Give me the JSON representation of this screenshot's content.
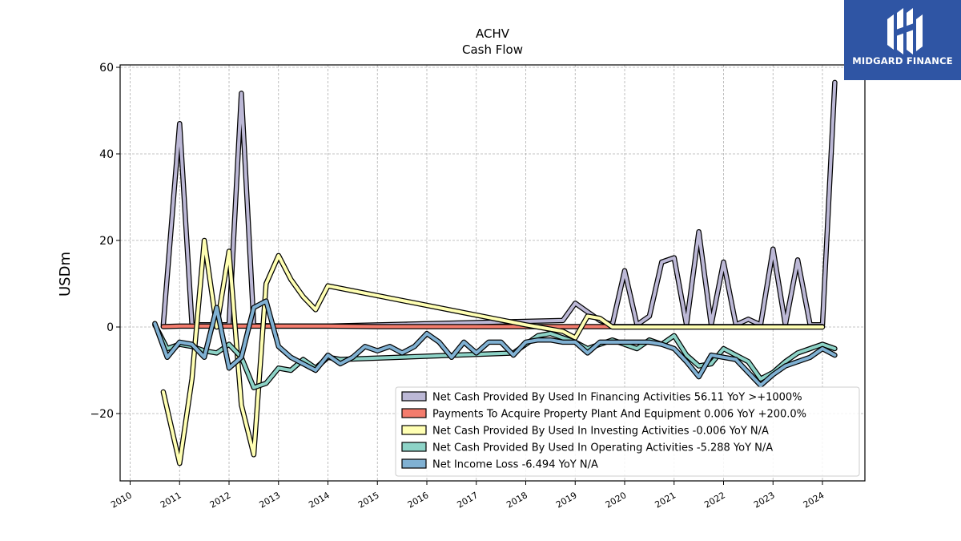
{
  "brand": {
    "name": "MIDGARD FINANCE",
    "logo_color": "#2f55a4"
  },
  "chart_data": {
    "type": "line",
    "title": "ACHV",
    "subtitle": "Cash Flow",
    "ylabel": "USDm",
    "xlabel": "",
    "ylim": [
      -35,
      60.5
    ],
    "xlim": [
      2009.8,
      2024.9
    ],
    "yticks": [
      -20,
      0,
      20,
      40,
      60
    ],
    "xticks": [
      2010,
      2011,
      2012,
      2013,
      2014,
      2015,
      2016,
      2017,
      2018,
      2019,
      2020,
      2021,
      2022,
      2023,
      2024
    ],
    "grid": true,
    "legend_position": "lower-right",
    "series": [
      {
        "name": "Net Cash Provided By Used In Financing Activities  56.11 YoY >+1000%",
        "color": "#bcb8d6",
        "x": [
          2010.67,
          2011.0,
          2011.25,
          2011.5,
          2011.75,
          2012.0,
          2012.25,
          2012.5,
          2012.75,
          2013.0,
          2013.75,
          2014.0,
          2018.75,
          2019.0,
          2019.25,
          2019.5,
          2019.75,
          2020.0,
          2020.25,
          2020.5,
          2020.75,
          2021.0,
          2021.25,
          2021.5,
          2021.75,
          2022.0,
          2022.25,
          2022.5,
          2022.75,
          2023.0,
          2023.25,
          2023.5,
          2023.75,
          2024.0,
          2024.25
        ],
        "values": [
          0.5,
          47,
          0.5,
          0.5,
          0.5,
          0.5,
          54,
          0.3,
          0.3,
          0.2,
          0.2,
          0.2,
          1.5,
          5.5,
          3.5,
          1.5,
          0.5,
          13,
          0.5,
          2.5,
          15,
          16,
          0.5,
          22,
          0.5,
          15,
          0.5,
          1.8,
          0.5,
          18,
          0.5,
          15.5,
          0.5,
          0.5,
          56.5
        ]
      },
      {
        "name": "Payments To Acquire Property Plant And Equipment  0.006 YoY +200.0%",
        "color": "#f47c6d",
        "x": [
          2010.67,
          2011.0,
          2012.0,
          2013.0,
          2014.0,
          2015.0,
          2016.0,
          2017.0,
          2018.0,
          2019.0,
          2019.75,
          2020.0,
          2021.0,
          2022.0,
          2023.0,
          2024.0
        ],
        "values": [
          0.1,
          0.2,
          0.2,
          0.2,
          0.2,
          0.1,
          0.1,
          0.1,
          0.1,
          0.1,
          0.1,
          0.1,
          0.1,
          0.1,
          0.1,
          0.1
        ]
      },
      {
        "name": "Net Cash Provided By Used In Investing Activities  -0.006 YoY N/A",
        "color": "#ffffb3",
        "x": [
          2010.67,
          2011.0,
          2011.25,
          2011.5,
          2011.75,
          2012.0,
          2012.25,
          2012.5,
          2012.75,
          2013.0,
          2013.25,
          2013.5,
          2013.75,
          2014.0,
          2018.0,
          2018.75,
          2019.0,
          2019.25,
          2019.5,
          2019.75,
          2020.0,
          2021.0,
          2022.0,
          2023.0,
          2024.0
        ],
        "values": [
          -15,
          -31.5,
          -12,
          20,
          0,
          17.5,
          -18,
          -29.5,
          10,
          16.5,
          11,
          7,
          4,
          9.5,
          0.5,
          -1,
          -2.5,
          2.5,
          2,
          0,
          0,
          0,
          0,
          0,
          0
        ]
      },
      {
        "name": "Net Cash Provided By Used In Operating Activities  -5.288 YoY N/A",
        "color": "#8dd3c7",
        "x": [
          2010.5,
          2010.75,
          2011.0,
          2011.25,
          2011.5,
          2011.75,
          2012.0,
          2012.25,
          2012.5,
          2012.75,
          2013.0,
          2013.25,
          2013.5,
          2013.75,
          2014.0,
          2014.25,
          2017.75,
          2018.0,
          2018.25,
          2018.5,
          2018.75,
          2019.0,
          2019.25,
          2019.5,
          2019.75,
          2020.0,
          2020.25,
          2020.5,
          2020.75,
          2021.0,
          2021.25,
          2021.5,
          2021.75,
          2022.0,
          2022.25,
          2022.5,
          2022.75,
          2023.0,
          2023.25,
          2023.5,
          2023.75,
          2024.0,
          2024.25
        ],
        "values": [
          0.5,
          -5,
          -4,
          -4.5,
          -5.5,
          -6,
          -4,
          -7,
          -14,
          -13,
          -9.5,
          -10,
          -7.5,
          -9.5,
          -7,
          -7.5,
          -6,
          -4,
          -2,
          -1.5,
          -2.5,
          -3.5,
          -5,
          -4,
          -3,
          -4,
          -5,
          -3,
          -4,
          -2,
          -6.5,
          -9,
          -8.5,
          -5,
          -6.5,
          -8,
          -12,
          -10.5,
          -8,
          -6,
          -5,
          -4,
          -5
        ]
      },
      {
        "name": "Net Income Loss  -6.494 YoY N/A",
        "color": "#80b1d3",
        "x": [
          2010.5,
          2010.75,
          2011.0,
          2011.25,
          2011.5,
          2011.75,
          2012.0,
          2012.25,
          2012.5,
          2012.75,
          2013.0,
          2013.25,
          2013.5,
          2013.75,
          2014.0,
          2014.25,
          2014.5,
          2014.75,
          2015.0,
          2015.25,
          2015.5,
          2015.75,
          2016.0,
          2016.25,
          2016.5,
          2016.75,
          2017.0,
          2017.25,
          2017.5,
          2017.75,
          2018.0,
          2018.25,
          2018.5,
          2018.75,
          2019.0,
          2019.25,
          2019.5,
          2019.75,
          2020.0,
          2020.25,
          2020.5,
          2020.75,
          2021.0,
          2021.25,
          2021.5,
          2021.75,
          2022.0,
          2022.25,
          2022.5,
          2022.75,
          2023.0,
          2023.25,
          2023.5,
          2023.75,
          2024.0,
          2024.25
        ],
        "values": [
          0.8,
          -7,
          -3.5,
          -4,
          -7,
          4.5,
          -9.5,
          -7,
          4.5,
          6,
          -4.5,
          -7,
          -8.5,
          -10,
          -6.5,
          -8.5,
          -7,
          -4.5,
          -5.5,
          -4.5,
          -6,
          -4.5,
          -1.5,
          -3.5,
          -7,
          -3.5,
          -6,
          -3.5,
          -3.5,
          -6.5,
          -3.5,
          -3,
          -3,
          -3.5,
          -3.5,
          -6,
          -3.5,
          -3.5,
          -3.5,
          -3.5,
          -3.5,
          -4,
          -5,
          -8,
          -11.5,
          -6.5,
          -7,
          -7.5,
          -10.5,
          -13.5,
          -11,
          -9,
          -8,
          -7,
          -5,
          -6.5
        ]
      }
    ]
  }
}
